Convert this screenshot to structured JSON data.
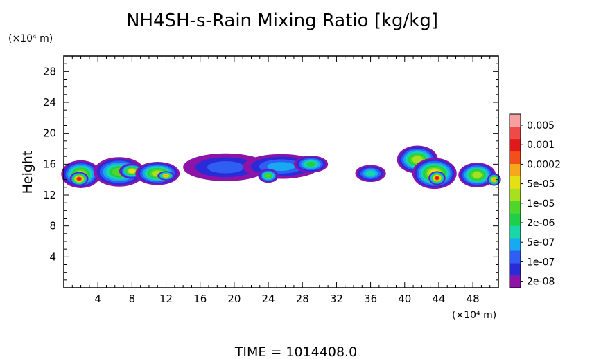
{
  "chart_data": {
    "type": "heatmap",
    "title": "NH4SH-s-Rain Mixing Ratio [kg/kg]",
    "ylabel": "Height",
    "yunit": "(×10⁴ m)",
    "xunit": "(×10⁴ m)",
    "footer": "TIME = 1014408.0",
    "xlim": [
      0,
      51
    ],
    "ylim": [
      0,
      30
    ],
    "xticks": [
      "4",
      "8",
      "12",
      "16",
      "20",
      "24",
      "28",
      "32",
      "36",
      "40",
      "44",
      "48"
    ],
    "yticks": [
      "4",
      "8",
      "12",
      "16",
      "20",
      "24",
      "28"
    ],
    "colorbar": {
      "labels": [
        "0.005",
        "0.001",
        "0.0002",
        "5e-05",
        "1e-05",
        "2e-06",
        "5e-07",
        "1e-07",
        "2e-08"
      ],
      "colors": [
        "#8e14a8",
        "#2a2ad6",
        "#2f5ef2",
        "#17a9f2",
        "#19d6a8",
        "#1fcf4a",
        "#4fd62a",
        "#a6e01e",
        "#e4e014",
        "#f6a81c",
        "#f24f1a",
        "#e01a1a",
        "#ef4a4a",
        "#f7a0a0"
      ]
    },
    "blobs": [
      {
        "x": 2.0,
        "y": 14.7,
        "rx": 2.3,
        "ry": 1.8,
        "level": 7
      },
      {
        "x": 1.8,
        "y": 14.1,
        "rx": 1.1,
        "ry": 0.9,
        "level": 11
      },
      {
        "x": 6.5,
        "y": 15.0,
        "rx": 3.0,
        "ry": 1.9,
        "level": 6
      },
      {
        "x": 8.0,
        "y": 15.1,
        "rx": 1.5,
        "ry": 1.0,
        "level": 8
      },
      {
        "x": 11.0,
        "y": 14.8,
        "rx": 2.6,
        "ry": 1.5,
        "level": 7
      },
      {
        "x": 12.0,
        "y": 14.5,
        "rx": 1.0,
        "ry": 0.6,
        "level": 9
      },
      {
        "x": 19.0,
        "y": 15.6,
        "rx": 5.0,
        "ry": 1.8,
        "level": 2
      },
      {
        "x": 25.5,
        "y": 15.7,
        "rx": 4.5,
        "ry": 1.6,
        "level": 3
      },
      {
        "x": 24.0,
        "y": 14.5,
        "rx": 1.2,
        "ry": 0.9,
        "level": 6
      },
      {
        "x": 29.0,
        "y": 16.0,
        "rx": 2.0,
        "ry": 1.1,
        "level": 5
      },
      {
        "x": 36.0,
        "y": 14.8,
        "rx": 1.8,
        "ry": 1.1,
        "level": 4
      },
      {
        "x": 41.5,
        "y": 16.6,
        "rx": 2.4,
        "ry": 1.8,
        "level": 7
      },
      {
        "x": 43.5,
        "y": 14.8,
        "rx": 2.6,
        "ry": 2.0,
        "level": 8
      },
      {
        "x": 43.8,
        "y": 14.2,
        "rx": 1.0,
        "ry": 0.9,
        "level": 11
      },
      {
        "x": 48.5,
        "y": 14.6,
        "rx": 2.2,
        "ry": 1.6,
        "level": 7
      },
      {
        "x": 50.5,
        "y": 14.0,
        "rx": 0.8,
        "ry": 0.8,
        "level": 9
      }
    ]
  }
}
